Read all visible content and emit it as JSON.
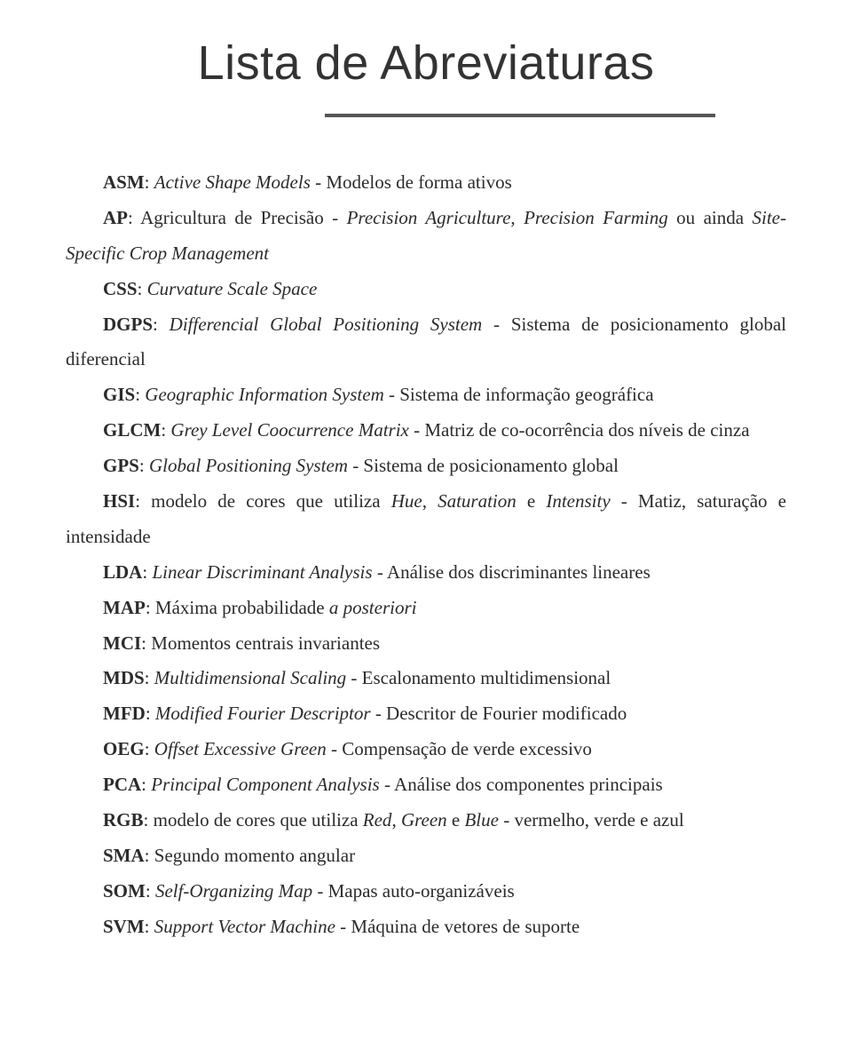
{
  "title": "Lista de Abreviaturas",
  "colors": {
    "text": "#2b2b2b",
    "rule": "#555555",
    "bg": "#ffffff"
  },
  "typography": {
    "title_fontsize": 54,
    "body_fontsize": 21,
    "line_height": 1.9
  },
  "entries": [
    {
      "abbr": "ASM",
      "italic": "Active Shape Models",
      "rest": " - Modelos de forma ativos"
    },
    {
      "abbr": "AP",
      "italic": "",
      "rest_html": "Agricultura de Precisão - <span class=\"it\">Precision Agriculture</span>, <span class=\"it\">Precision Farming</span> ou ainda <span class=\"it\">Site-Specific Crop Management</span>"
    },
    {
      "abbr": "CSS",
      "italic": "Curvature Scale Space",
      "rest": ""
    },
    {
      "abbr": "DGPS",
      "italic": "Differencial Global Positioning System",
      "rest": " - Sistema de posicionamento global diferencial"
    },
    {
      "abbr": "GIS",
      "italic": "Geographic Information System",
      "rest": " - Sistema de informação geográfica"
    },
    {
      "abbr": "GLCM",
      "italic": "Grey Level Coocurrence Matrix",
      "rest": " - Matriz de co-ocorrência dos níveis de cinza"
    },
    {
      "abbr": "GPS",
      "italic": "Global Positioning System",
      "rest": " - Sistema de posicionamento global"
    },
    {
      "abbr": "HSI",
      "italic": "",
      "rest_html": "modelo de cores que utiliza <span class=\"it\">Hue</span>, <span class=\"it\">Saturation</span> e <span class=\"it\">Intensity</span> - Matiz, saturação e intensidade"
    },
    {
      "abbr": "LDA",
      "italic": "Linear Discriminant Analysis",
      "rest": " - Análise dos discriminantes lineares"
    },
    {
      "abbr": "MAP",
      "italic": "",
      "rest_html": "Máxima probabilidade <span class=\"it\">a posteriori</span>"
    },
    {
      "abbr": "MCI",
      "italic": "",
      "rest": "Momentos centrais invariantes"
    },
    {
      "abbr": "MDS",
      "italic": "Multidimensional Scaling",
      "rest": " - Escalonamento multidimensional"
    },
    {
      "abbr": "MFD",
      "italic": "Modified Fourier Descriptor",
      "rest": " - Descritor de Fourier modificado"
    },
    {
      "abbr": "OEG",
      "italic": "Offset Excessive Green",
      "rest": " - Compensação de verde excessivo"
    },
    {
      "abbr": "PCA",
      "italic": "Principal Component Analysis",
      "rest": " - Análise dos componentes principais"
    },
    {
      "abbr": "RGB",
      "italic": "",
      "rest_html": "modelo de cores que utiliza <span class=\"it\">Red</span>, <span class=\"it\">Green</span> e <span class=\"it\">Blue</span> - vermelho, verde e azul"
    },
    {
      "abbr": "SMA",
      "italic": "",
      "rest": "Segundo momento angular"
    },
    {
      "abbr": "SOM",
      "italic": "Self-Organizing Map",
      "rest": " - Mapas auto-organizáveis"
    },
    {
      "abbr": "SVM",
      "italic": "Support Vector Machine",
      "rest": " - Máquina de vetores de suporte"
    }
  ]
}
